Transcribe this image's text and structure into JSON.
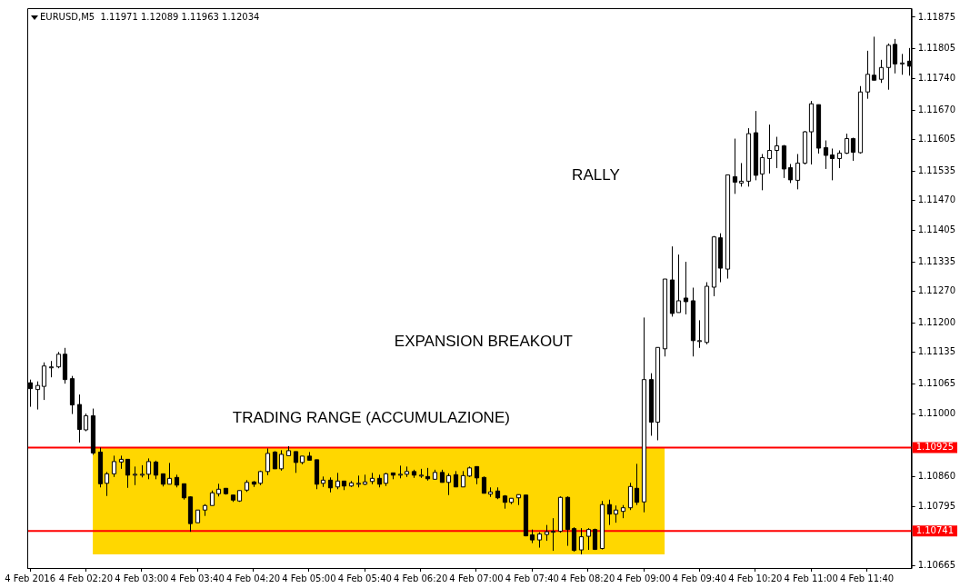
{
  "chart_data": {
    "type": "candlestick",
    "title": "EURUSD,M5  1.11971 1.12089 1.11963 1.12034",
    "colors": [
      "#000000",
      "#ffffff",
      "#ffffff",
      "#ffffff",
      "#ffffff",
      "#000000",
      "#000000",
      "#000000",
      "#ffffff",
      "#000000",
      "#000000",
      "#ffffff",
      "#ffffff",
      "#ffffff",
      "#000000",
      "#ffffff",
      "#ffffff",
      "#ffffff",
      "#000000",
      "#000000",
      "#ffffff",
      "#000000",
      "#000000",
      "#000000",
      "#ffffff",
      "#ffffff",
      "#ffffff",
      "#ffffff",
      "#000000",
      "#000000",
      "#ffffff",
      "#ffffff",
      "#000000",
      "#ffffff",
      "#ffffff",
      "#000000",
      "#ffffff",
      "#ffffff",
      "#000000",
      "#ffffff",
      "#000000",
      "#000000",
      "#ffffff",
      "#000000",
      "#ffffff",
      "#000000",
      "#ffffff",
      "#ffffff",
      "#ffffff",
      "#ffffff",
      "#000000",
      "#ffffff",
      "#000000",
      "#ffffff",
      "#ffffff",
      "#000000",
      "#ffffff",
      "#000000",
      "#ffffff",
      "#000000",
      "#ffffff",
      "#000000",
      "#ffffff",
      "#ffffff",
      "#000000",
      "#000000",
      "#ffffff",
      "#000000",
      "#000000",
      "#ffffff",
      "#ffffff",
      "#000000",
      "#000000",
      "#ffffff",
      "#ffffff",
      "#ffffff",
      "#ffffff",
      "#000000",
      "#000000",
      "#ffffff",
      "#ffffff",
      "#000000",
      "#ffffff",
      "#000000",
      "#ffffff",
      "#ffffff",
      "#ffffff",
      "#000000",
      "#ffffff",
      "#000000",
      "#ffffff",
      "#ffffff",
      "#000000",
      "#ffffff",
      "#000000",
      "#000000",
      "#ffffff",
      "#ffffff",
      "#ffffff",
      "#000000",
      "#ffffff",
      "#000000",
      "#ffffff",
      "#ffffff",
      "#000000",
      "#ffffff",
      "#ffffff",
      "#ffffff",
      "#000000",
      "#000000",
      "#ffffff",
      "#ffffff",
      "#ffffff",
      "#000000",
      "#000000",
      "#000000",
      "#ffffff",
      "#ffffff",
      "#000000",
      "#ffffff",
      "#ffffff",
      "#000000",
      "#ffffff",
      "#ffffff",
      "#000000",
      "#ffffff",
      "#000000"
    ],
    "x": [
      "2016-02-04T01:40",
      "2016-02-04T01:45",
      "2016-02-04T01:50",
      "2016-02-04T01:55",
      "2016-02-04T02:00",
      "2016-02-04T02:05",
      "2016-02-04T02:10",
      "2016-02-04T02:15",
      "2016-02-04T02:20",
      "2016-02-04T02:25",
      "2016-02-04T02:30",
      "2016-02-04T02:35",
      "2016-02-04T02:40",
      "2016-02-04T02:45",
      "2016-02-04T02:50",
      "2016-02-04T02:55",
      "2016-02-04T03:00",
      "2016-02-04T03:05",
      "2016-02-04T03:10",
      "2016-02-04T03:15",
      "2016-02-04T03:20",
      "2016-02-04T03:25",
      "2016-02-04T03:30",
      "2016-02-04T03:35",
      "2016-02-04T03:40",
      "2016-02-04T03:45",
      "2016-02-04T03:50",
      "2016-02-04T03:55",
      "2016-02-04T04:00",
      "2016-02-04T04:05",
      "2016-02-04T04:10",
      "2016-02-04T04:15",
      "2016-02-04T04:20",
      "2016-02-04T04:25",
      "2016-02-04T04:30",
      "2016-02-04T04:35",
      "2016-02-04T04:40",
      "2016-02-04T04:45",
      "2016-02-04T04:50",
      "2016-02-04T04:55",
      "2016-02-04T05:00",
      "2016-02-04T05:05",
      "2016-02-04T05:10",
      "2016-02-04T05:15",
      "2016-02-04T05:20",
      "2016-02-04T05:25",
      "2016-02-04T05:30",
      "2016-02-04T05:35",
      "2016-02-04T05:40",
      "2016-02-04T05:45",
      "2016-02-04T05:50",
      "2016-02-04T05:55",
      "2016-02-04T06:00",
      "2016-02-04T06:05",
      "2016-02-04T06:10",
      "2016-02-04T06:15",
      "2016-02-04T06:20",
      "2016-02-04T06:25",
      "2016-02-04T06:30",
      "2016-02-04T06:35",
      "2016-02-04T06:40",
      "2016-02-04T06:45",
      "2016-02-04T06:50",
      "2016-02-04T06:55",
      "2016-02-04T07:00",
      "2016-02-04T07:05",
      "2016-02-04T07:10",
      "2016-02-04T07:15",
      "2016-02-04T07:20",
      "2016-02-04T07:25",
      "2016-02-04T07:30",
      "2016-02-04T07:35",
      "2016-02-04T07:40",
      "2016-02-04T07:45",
      "2016-02-04T07:50",
      "2016-02-04T07:55",
      "2016-02-04T08:00",
      "2016-02-04T08:05",
      "2016-02-04T08:10",
      "2016-02-04T08:15",
      "2016-02-04T08:20",
      "2016-02-04T08:25",
      "2016-02-04T08:30",
      "2016-02-04T08:35",
      "2016-02-04T08:40",
      "2016-02-04T08:45",
      "2016-02-04T08:50",
      "2016-02-04T08:55",
      "2016-02-04T09:00",
      "2016-02-04T09:05",
      "2016-02-04T09:10",
      "2016-02-04T09:15",
      "2016-02-04T09:20",
      "2016-02-04T09:25",
      "2016-02-04T09:30",
      "2016-02-04T09:35",
      "2016-02-04T09:40",
      "2016-02-04T09:45",
      "2016-02-04T09:50",
      "2016-02-04T09:55",
      "2016-02-04T10:00",
      "2016-02-04T10:05",
      "2016-02-04T10:10",
      "2016-02-04T10:15",
      "2016-02-04T10:20",
      "2016-02-04T10:25",
      "2016-02-04T10:30",
      "2016-02-04T10:35",
      "2016-02-04T10:40",
      "2016-02-04T10:45",
      "2016-02-04T10:50",
      "2016-02-04T10:55",
      "2016-02-04T11:00",
      "2016-02-04T11:05",
      "2016-02-04T11:10",
      "2016-02-04T11:15",
      "2016-02-04T11:20",
      "2016-02-04T11:25",
      "2016-02-04T11:30",
      "2016-02-04T11:35",
      "2016-02-04T11:40",
      "2016-02-04T11:45",
      "2016-02-04T11:50",
      "2016-02-04T11:55",
      "2016-02-04T12:00",
      "2016-02-04T12:05",
      "2016-02-04T12:10"
    ],
    "ohlc": [
      [
        1.11068,
        1.11075,
        1.11015,
        1.11055
      ],
      [
        1.11053,
        1.11071,
        1.11009,
        1.11062
      ],
      [
        1.1106,
        1.11113,
        1.1103,
        1.11105
      ],
      [
        1.11103,
        1.11116,
        1.1108,
        1.11103
      ],
      [
        1.11103,
        1.11136,
        1.111,
        1.11131
      ],
      [
        1.11131,
        1.11145,
        1.11066,
        1.11075
      ],
      [
        1.11077,
        1.11083,
        1.10999,
        1.11019
      ],
      [
        1.1102,
        1.11042,
        1.10936,
        1.10965
      ],
      [
        1.10964,
        1.11,
        1.10961,
        1.10995
      ],
      [
        1.10995,
        1.11011,
        1.10909,
        1.10913
      ],
      [
        1.10915,
        1.10925,
        1.10837,
        1.10845
      ],
      [
        1.10846,
        1.10871,
        1.10818,
        1.10867
      ],
      [
        1.10867,
        1.10907,
        1.1086,
        1.10894
      ],
      [
        1.10893,
        1.10907,
        1.10878,
        1.10899
      ],
      [
        1.10899,
        1.10899,
        1.10836,
        1.10864
      ],
      [
        1.10866,
        1.10883,
        1.10842,
        1.10866
      ],
      [
        1.10866,
        1.10886,
        1.10859,
        1.10866
      ],
      [
        1.10866,
        1.10901,
        1.10855,
        1.10894
      ],
      [
        1.10893,
        1.10896,
        1.10855,
        1.10864
      ],
      [
        1.10867,
        1.10867,
        1.10839,
        1.10844
      ],
      [
        1.10844,
        1.10891,
        1.10844,
        1.10857
      ],
      [
        1.10859,
        1.10865,
        1.10837,
        1.10842
      ],
      [
        1.10845,
        1.10845,
        1.1081,
        1.10814
      ],
      [
        1.10816,
        1.10817,
        1.10739,
        1.10757
      ],
      [
        1.10759,
        1.10787,
        1.10759,
        1.10787
      ],
      [
        1.10787,
        1.108,
        1.10774,
        1.10797
      ],
      [
        1.10797,
        1.1083,
        1.10797,
        1.10825
      ],
      [
        1.10823,
        1.10845,
        1.10817,
        1.10833
      ],
      [
        1.10835,
        1.10835,
        1.10821,
        1.10823
      ],
      [
        1.1082,
        1.1082,
        1.10805,
        1.10809
      ],
      [
        1.10807,
        1.1083,
        1.10805,
        1.1083
      ],
      [
        1.10831,
        1.10853,
        1.10827,
        1.10848
      ],
      [
        1.10849,
        1.10851,
        1.10838,
        1.10844
      ],
      [
        1.10846,
        1.10874,
        1.10842,
        1.10872
      ],
      [
        1.10872,
        1.10923,
        1.10864,
        1.10912
      ],
      [
        1.10915,
        1.10917,
        1.10878,
        1.10878
      ],
      [
        1.10878,
        1.10919,
        1.10874,
        1.1091
      ],
      [
        1.10907,
        1.10928,
        1.10907,
        1.10918
      ],
      [
        1.10916,
        1.10916,
        1.10869,
        1.10892
      ],
      [
        1.10892,
        1.10906,
        1.10888,
        1.10906
      ],
      [
        1.10906,
        1.10915,
        1.10897,
        1.10897
      ],
      [
        1.10898,
        1.10898,
        1.10833,
        1.10844
      ],
      [
        1.10846,
        1.10861,
        1.10838,
        1.10853
      ],
      [
        1.10853,
        1.10859,
        1.10826,
        1.10836
      ],
      [
        1.10838,
        1.10869,
        1.10833,
        1.10851
      ],
      [
        1.10851,
        1.10851,
        1.10831,
        1.1084
      ],
      [
        1.1084,
        1.10851,
        1.10838,
        1.10847
      ],
      [
        1.10846,
        1.10863,
        1.10837,
        1.10846
      ],
      [
        1.10844,
        1.10865,
        1.10842,
        1.10849
      ],
      [
        1.1085,
        1.10869,
        1.10844,
        1.10857
      ],
      [
        1.10857,
        1.10865,
        1.10837,
        1.10844
      ],
      [
        1.10846,
        1.10869,
        1.1084,
        1.10867
      ],
      [
        1.10869,
        1.10869,
        1.10855,
        1.10864
      ],
      [
        1.10866,
        1.10885,
        1.10857,
        1.10866
      ],
      [
        1.10866,
        1.10883,
        1.1086,
        1.10872
      ],
      [
        1.10872,
        1.10876,
        1.10858,
        1.10864
      ],
      [
        1.10864,
        1.10878,
        1.10858,
        1.10864
      ],
      [
        1.10861,
        1.1088,
        1.10852,
        1.10856
      ],
      [
        1.10855,
        1.10876,
        1.10855,
        1.1087
      ],
      [
        1.1087,
        1.10876,
        1.10848,
        1.10848
      ],
      [
        1.10848,
        1.10868,
        1.1082,
        1.10863
      ],
      [
        1.10865,
        1.10873,
        1.10838,
        1.10838
      ],
      [
        1.10838,
        1.10873,
        1.10838,
        1.10863
      ],
      [
        1.10862,
        1.10883,
        1.1086,
        1.1088
      ],
      [
        1.10883,
        1.10883,
        1.10844,
        1.10858
      ],
      [
        1.10859,
        1.10861,
        1.10824,
        1.10824
      ],
      [
        1.10822,
        1.10837,
        1.10816,
        1.10827
      ],
      [
        1.10829,
        1.10837,
        1.10811,
        1.10814
      ],
      [
        1.10818,
        1.1082,
        1.1079,
        1.10804
      ],
      [
        1.10804,
        1.10813,
        1.108,
        1.10813
      ],
      [
        1.10814,
        1.10821,
        1.10798,
        1.10821
      ],
      [
        1.1082,
        1.1082,
        1.10729,
        1.1073
      ],
      [
        1.10732,
        1.10744,
        1.10714,
        1.10721
      ],
      [
        1.10721,
        1.10738,
        1.10704,
        1.10734
      ],
      [
        1.10733,
        1.10754,
        1.10719,
        1.10739
      ],
      [
        1.1074,
        1.10769,
        1.10697,
        1.1074
      ],
      [
        1.1074,
        1.10817,
        1.10737,
        1.10815
      ],
      [
        1.10815,
        1.10817,
        1.10708,
        1.10744
      ],
      [
        1.10746,
        1.10749,
        1.10695,
        1.10698
      ],
      [
        1.10699,
        1.10747,
        1.10689,
        1.10728
      ],
      [
        1.10729,
        1.10747,
        1.10699,
        1.10744
      ],
      [
        1.10744,
        1.10746,
        1.10699,
        1.107
      ],
      [
        1.10702,
        1.10807,
        1.107,
        1.10799
      ],
      [
        1.10799,
        1.1081,
        1.10754,
        1.10778
      ],
      [
        1.10778,
        1.10797,
        1.10759,
        1.10787
      ],
      [
        1.10784,
        1.10798,
        1.10769,
        1.10792
      ],
      [
        1.10792,
        1.10847,
        1.10787,
        1.10839
      ],
      [
        1.10835,
        1.10889,
        1.10798,
        1.10804
      ],
      [
        1.10805,
        1.11212,
        1.10782,
        1.11075
      ],
      [
        1.11075,
        1.11089,
        1.10951,
        1.10981
      ],
      [
        1.10981,
        1.11146,
        1.10941,
        1.11146
      ],
      [
        1.11143,
        1.11297,
        1.11126,
        1.11297
      ],
      [
        1.11295,
        1.11369,
        1.11214,
        1.11221
      ],
      [
        1.11223,
        1.11351,
        1.11223,
        1.11249
      ],
      [
        1.11255,
        1.11335,
        1.11219,
        1.11247
      ],
      [
        1.11249,
        1.11278,
        1.11126,
        1.11161
      ],
      [
        1.11161,
        1.11206,
        1.11145,
        1.11161
      ],
      [
        1.11157,
        1.1129,
        1.11153,
        1.11281
      ],
      [
        1.11279,
        1.11392,
        1.11259,
        1.1139
      ],
      [
        1.11388,
        1.11398,
        1.1129,
        1.11321
      ],
      [
        1.11319,
        1.11527,
        1.11298,
        1.11527
      ],
      [
        1.11523,
        1.11607,
        1.11485,
        1.11511
      ],
      [
        1.11509,
        1.11553,
        1.11501,
        1.11513
      ],
      [
        1.11513,
        1.1163,
        1.11501,
        1.11618
      ],
      [
        1.1162,
        1.11668,
        1.11515,
        1.11526
      ],
      [
        1.11529,
        1.11573,
        1.11493,
        1.11565
      ],
      [
        1.11563,
        1.11638,
        1.1153,
        1.11581
      ],
      [
        1.11581,
        1.11611,
        1.11542,
        1.11591
      ],
      [
        1.11591,
        1.11593,
        1.1152,
        1.1154
      ],
      [
        1.11543,
        1.11551,
        1.11509,
        1.11516
      ],
      [
        1.11515,
        1.11573,
        1.11495,
        1.11553
      ],
      [
        1.11553,
        1.11624,
        1.1155,
        1.11622
      ],
      [
        1.11622,
        1.1169,
        1.1155,
        1.11684
      ],
      [
        1.11682,
        1.11682,
        1.11574,
        1.11586
      ],
      [
        1.11587,
        1.11603,
        1.1154,
        1.1157
      ],
      [
        1.11571,
        1.11585,
        1.11515,
        1.11563
      ],
      [
        1.11563,
        1.11581,
        1.11542,
        1.11575
      ],
      [
        1.11575,
        1.11618,
        1.11573,
        1.11607
      ],
      [
        1.11607,
        1.11609,
        1.11558,
        1.11577
      ],
      [
        1.11576,
        1.11723,
        1.11574,
        1.1171
      ],
      [
        1.1171,
        1.11801,
        1.11695,
        1.11749
      ],
      [
        1.11747,
        1.11832,
        1.11736,
        1.11736
      ],
      [
        1.11738,
        1.11781,
        1.1173,
        1.11764
      ],
      [
        1.11764,
        1.11817,
        1.11715,
        1.11813
      ],
      [
        1.11815,
        1.11827,
        1.11751,
        1.11772
      ],
      [
        1.11774,
        1.11794,
        1.11748,
        1.11774
      ],
      [
        1.11778,
        1.11807,
        1.11746,
        1.11767
      ]
    ],
    "xlim": [
      "2016-02-04T01:38",
      "2016-02-04T12:12"
    ],
    "xticks": [
      {
        "value": "2016-02-04T01:40",
        "label": "4 Feb 2016"
      },
      {
        "value": "2016-02-04T02:20",
        "label": "4 Feb 02:20"
      },
      {
        "value": "2016-02-04T03:00",
        "label": "4 Feb 03:00"
      },
      {
        "value": "2016-02-04T03:40",
        "label": "4 Feb 03:40"
      },
      {
        "value": "2016-02-04T04:20",
        "label": "4 Feb 04:20"
      },
      {
        "value": "2016-02-04T05:00",
        "label": "4 Feb 05:00"
      },
      {
        "value": "2016-02-04T05:40",
        "label": "4 Feb 05:40"
      },
      {
        "value": "2016-02-04T06:20",
        "label": "4 Feb 06:20"
      },
      {
        "value": "2016-02-04T07:00",
        "label": "4 Feb 07:00"
      },
      {
        "value": "2016-02-04T07:40",
        "label": "4 Feb 07:40"
      },
      {
        "value": "2016-02-04T08:20",
        "label": "4 Feb 08:20"
      },
      {
        "value": "2016-02-04T09:00",
        "label": "4 Feb 09:00"
      },
      {
        "value": "2016-02-04T09:40",
        "label": "4 Feb 09:40"
      },
      {
        "value": "2016-02-04T10:20",
        "label": "4 Feb 10:20"
      },
      {
        "value": "2016-02-04T11:00",
        "label": "4 Feb 11:00"
      },
      {
        "value": "2016-02-04T11:40",
        "label": "4 Feb 11:40"
      }
    ],
    "ylim": [
      1.10659,
      1.11895
    ],
    "yticks": [
      {
        "value": 1.10665,
        "label": "1.10665"
      },
      {
        "value": 1.10795,
        "label": "1.10795"
      },
      {
        "value": 1.1086,
        "label": "1.10860"
      },
      {
        "value": 1.11,
        "label": "1.11000"
      },
      {
        "value": 1.11065,
        "label": "1.11065"
      },
      {
        "value": 1.11135,
        "label": "1.11135"
      },
      {
        "value": 1.112,
        "label": "1.11200"
      },
      {
        "value": 1.1127,
        "label": "1.11270"
      },
      {
        "value": 1.11335,
        "label": "1.11335"
      },
      {
        "value": 1.11405,
        "label": "1.11405"
      },
      {
        "value": 1.1147,
        "label": "1.11470"
      },
      {
        "value": 1.11535,
        "label": "1.11535"
      },
      {
        "value": 1.11605,
        "label": "1.11605"
      },
      {
        "value": 1.1167,
        "label": "1.11670"
      },
      {
        "value": 1.1174,
        "label": "1.11740"
      },
      {
        "value": 1.11805,
        "label": "1.11805"
      },
      {
        "value": 1.11875,
        "label": "1.11875"
      }
    ],
    "ref_lines": [
      {
        "axis": "y",
        "value": 1.10925,
        "label": "1.10925",
        "color": "#ff0000"
      },
      {
        "axis": "y",
        "value": 1.10741,
        "label": "1.10741",
        "color": "#ff0000"
      }
    ],
    "bands": [
      {
        "axis": "x",
        "from": "2016-02-04T02:25",
        "to": "2016-02-04T09:15",
        "color": "#ffd700"
      }
    ],
    "annotations": [
      "RALLY",
      "EXPANSION BREAKOUT",
      "TRADING RANGE (ACCUMULAZIONE)"
    ]
  }
}
